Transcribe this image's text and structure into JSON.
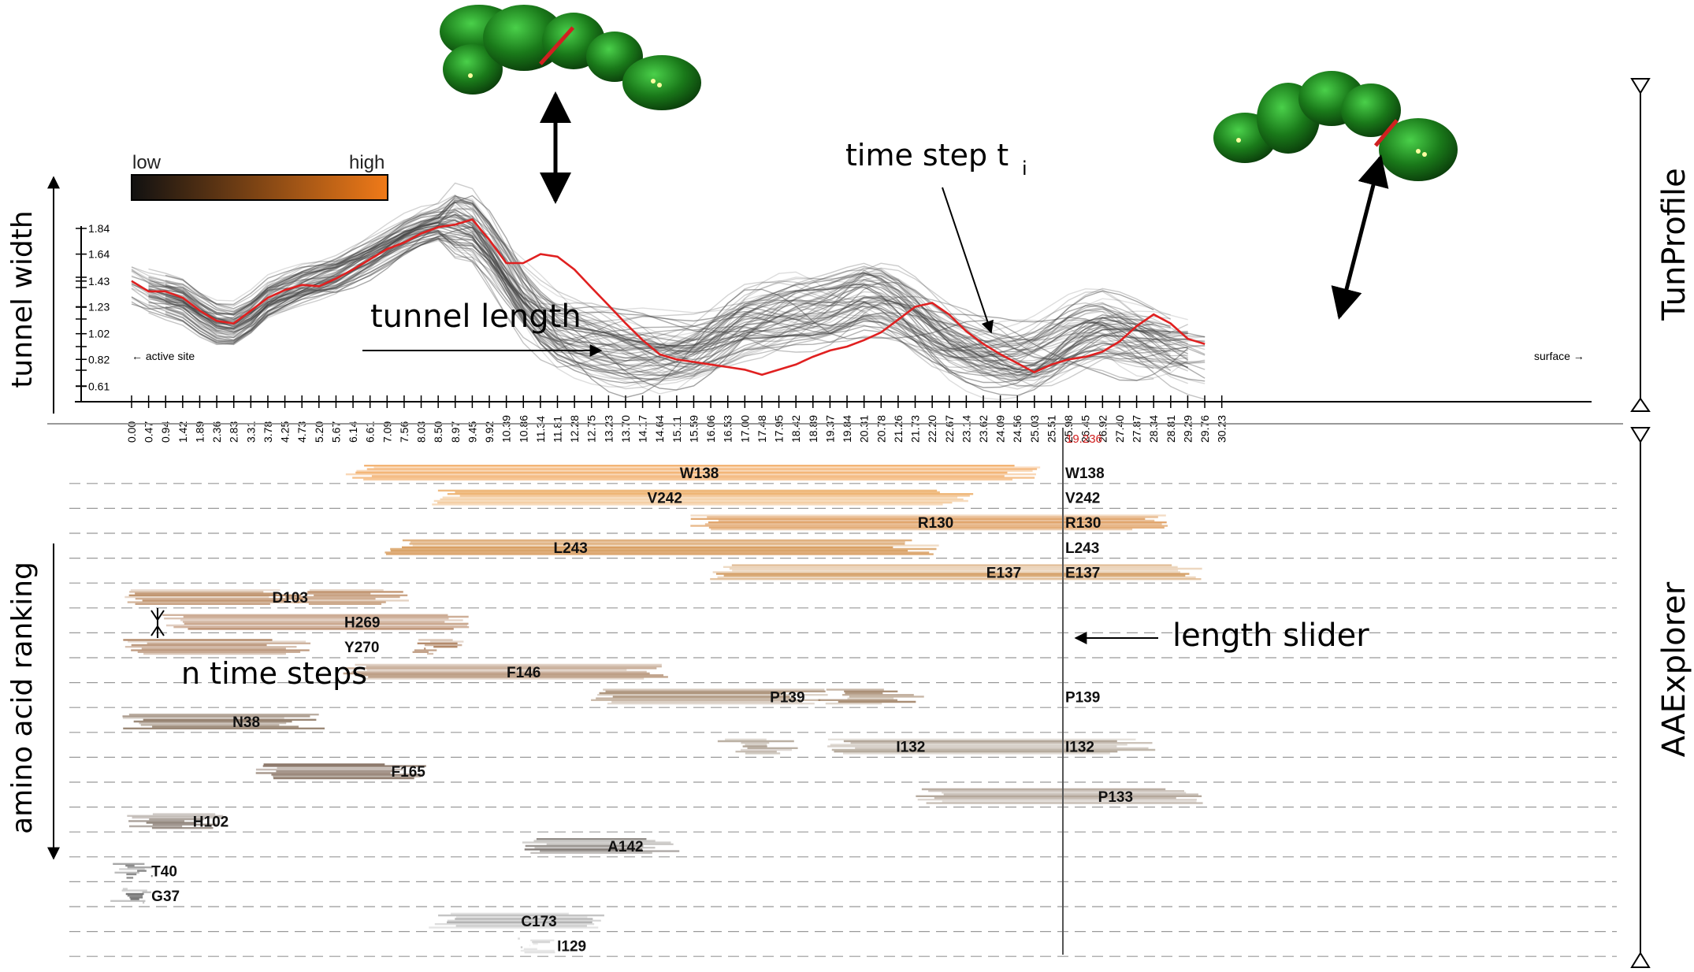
{
  "chart_data": [
    {
      "type": "line",
      "panel_label": "TunProfile",
      "ylabel": "tunnel width",
      "xlabel": "tunnel length",
      "y_ticks": [
        "1.84",
        "1.64",
        "1.43",
        "1.23",
        "1.02",
        "0.82",
        "0.61"
      ],
      "x_ticks": [
        "0.00",
        "0.47",
        "0.94",
        "1.42",
        "1.89",
        "2.36",
        "2.83",
        "3.31",
        "3.78",
        "4.25",
        "4.73",
        "5.20",
        "5.67",
        "6.14",
        "6.61",
        "7.09",
        "7.56",
        "8.03",
        "8.50",
        "8.97",
        "9.45",
        "9.92",
        "10.39",
        "10.86",
        "11.34",
        "11.81",
        "12.28",
        "12.75",
        "13.23",
        "13.70",
        "14.17",
        "14.64",
        "15.11",
        "15.59",
        "16.06",
        "16.53",
        "17.00",
        "17.48",
        "17.95",
        "18.42",
        "18.89",
        "19.37",
        "19.84",
        "20.31",
        "20.78",
        "21.26",
        "21.73",
        "22.20",
        "22.67",
        "23.14",
        "23.62",
        "24.09",
        "24.56",
        "25.03",
        "25.51",
        "25.98",
        "26.45",
        "26.92",
        "27.40",
        "27.87",
        "28.34",
        "28.81",
        "29.29",
        "29.76",
        "30.23"
      ],
      "start_label": "← active site",
      "end_label": "surface →",
      "colorbar": {
        "low": "low",
        "high": "high",
        "from": "#111111",
        "to": "#f07a18"
      },
      "highlight_color": "#e02020",
      "bundle_color": "#444444",
      "highlight_series": {
        "x": [
          0.0,
          0.47,
          0.94,
          1.42,
          1.89,
          2.36,
          2.83,
          3.31,
          3.78,
          4.25,
          4.73,
          5.2,
          5.67,
          6.14,
          6.61,
          7.09,
          7.56,
          8.03,
          8.5,
          8.97,
          9.45,
          9.92,
          10.39,
          10.86,
          11.34,
          11.81,
          12.28,
          12.75,
          13.23,
          13.7,
          14.17,
          14.64,
          15.11,
          15.59,
          16.06,
          16.53,
          17.0,
          17.48,
          17.95,
          18.42,
          18.89,
          19.37,
          19.84,
          20.31,
          20.78,
          21.26,
          21.73,
          22.2,
          22.67,
          23.14,
          23.62,
          24.09,
          24.56,
          25.03,
          25.51,
          25.98,
          26.45,
          26.92,
          27.4,
          27.87,
          28.34,
          28.81,
          29.29,
          29.76
        ],
        "y": [
          1.43,
          1.35,
          1.35,
          1.3,
          1.2,
          1.12,
          1.1,
          1.2,
          1.3,
          1.36,
          1.4,
          1.39,
          1.45,
          1.52,
          1.6,
          1.68,
          1.73,
          1.8,
          1.85,
          1.87,
          1.91,
          1.75,
          1.57,
          1.57,
          1.64,
          1.62,
          1.52,
          1.38,
          1.24,
          1.1,
          0.97,
          0.86,
          0.82,
          0.8,
          0.78,
          0.76,
          0.74,
          0.7,
          0.74,
          0.78,
          0.84,
          0.89,
          0.92,
          0.97,
          1.03,
          1.13,
          1.23,
          1.26,
          1.17,
          1.04,
          0.94,
          0.86,
          0.79,
          0.72,
          0.78,
          0.82,
          0.84,
          0.88,
          0.96,
          1.08,
          1.17,
          1.1,
          0.98,
          0.94
        ]
      },
      "annotations": [
        "time step t",
        "i"
      ]
    },
    {
      "type": "heatmap",
      "panel_label": "AAExplorer",
      "ylabel": "amino acid ranking",
      "slider_value": "19.236",
      "slider_label": "length slider",
      "n_steps_label": "n time steps",
      "rows": [
        {
          "name": "W138",
          "color": "#f0a050",
          "spans": [
            [
              6.2,
              25.1
            ]
          ],
          "labels": [
            [
              "W138",
              15.2
            ]
          ]
        },
        {
          "name": "V242",
          "color": "#e89840",
          "spans": [
            [
              8.5,
              23.0
            ]
          ],
          "labels": [
            [
              "V242",
              14.3
            ]
          ]
        },
        {
          "name": "R130",
          "color": "#d88a40",
          "spans": [
            [
              15.7,
              28.5
            ]
          ],
          "labels": [
            [
              "R130",
              21.8
            ]
          ]
        },
        {
          "name": "L243",
          "color": "#d08a40",
          "spans": [
            [
              7.2,
              22.0
            ]
          ],
          "labels": [
            [
              "L243",
              11.7
            ]
          ]
        },
        {
          "name": "E137",
          "color": "#c8843c",
          "spans": [
            [
              16.2,
              29.5
            ]
          ],
          "labels": [
            [
              "E137",
              23.7
            ]
          ]
        },
        {
          "name": "D103",
          "color": "#b0784a",
          "spans": [
            [
              0.0,
              4.5
            ],
            [
              4.5,
              7.5
            ]
          ],
          "labels": [
            [
              "D103",
              3.9
            ]
          ]
        },
        {
          "name": "H269",
          "color": "#a87048",
          "spans": [
            [
              1.0,
              9.5
            ]
          ],
          "labels": [
            [
              "H269",
              5.9
            ]
          ]
        },
        {
          "name": "Y270",
          "color": "#a06c45",
          "spans": [
            [
              0.0,
              4.6
            ],
            [
              8.0,
              9.0
            ]
          ],
          "labels": [
            [
              "Y270",
              5.9
            ]
          ]
        },
        {
          "name": "F146",
          "color": "#9a6a44",
          "spans": [
            [
              6.0,
              14.6
            ]
          ],
          "labels": [
            [
              "F146",
              10.4
            ]
          ]
        },
        {
          "name": "P139",
          "color": "#927050",
          "spans": [
            [
              12.8,
              19.0
            ],
            [
              19.3,
              21.6
            ]
          ],
          "labels": [
            [
              "P139",
              17.7
            ]
          ]
        },
        {
          "name": "N38",
          "color": "#7e6650",
          "spans": [
            [
              0.0,
              5.0
            ]
          ],
          "labels": [
            [
              "N38",
              2.8
            ]
          ]
        },
        {
          "name": "I132",
          "color": "#9a8a78",
          "spans": [
            [
              16.5,
              18.2
            ],
            [
              19.5,
              28.0
            ]
          ],
          "labels": [
            [
              "I132",
              21.2
            ]
          ]
        },
        {
          "name": "F165",
          "color": "#6e5442",
          "spans": [
            [
              3.5,
              7.8
            ]
          ],
          "labels": [
            [
              "F165",
              7.2
            ]
          ]
        },
        {
          "name": "P133",
          "color": "#9a8878",
          "spans": [
            [
              22.0,
              29.5
            ]
          ],
          "labels": [
            [
              "P133",
              26.8
            ]
          ]
        },
        {
          "name": "H102",
          "color": "#6a5a4e",
          "spans": [
            [
              0.0,
              2.3
            ]
          ],
          "labels": [
            [
              "H102",
              1.7
            ]
          ]
        },
        {
          "name": "A142",
          "color": "#5e5650",
          "spans": [
            [
              11.0,
              14.8
            ]
          ],
          "labels": [
            [
              "A142",
              13.2
            ]
          ]
        },
        {
          "name": "T40",
          "color": "#555555",
          "spans": [
            [
              0.0,
              0.3
            ]
          ],
          "labels": [
            [
              "T40",
              0.55
            ]
          ]
        },
        {
          "name": "G37",
          "color": "#555555",
          "spans": [
            [
              0.0,
              0.3
            ]
          ],
          "labels": [
            [
              "G37",
              0.55
            ]
          ]
        },
        {
          "name": "C173",
          "color": "#9a9a9a",
          "spans": [
            [
              8.5,
              12.8
            ]
          ],
          "labels": [
            [
              "C173",
              10.8
            ]
          ]
        },
        {
          "name": "I129",
          "color": "#bbbbbb",
          "spans": [
            [
              11.0,
              11.6
            ]
          ],
          "labels": [
            [
              "I129",
              11.8
            ]
          ]
        }
      ],
      "slider_labels": [
        "W138",
        "V242",
        "R130",
        "L243",
        "E137",
        "P139",
        "I132"
      ]
    }
  ]
}
